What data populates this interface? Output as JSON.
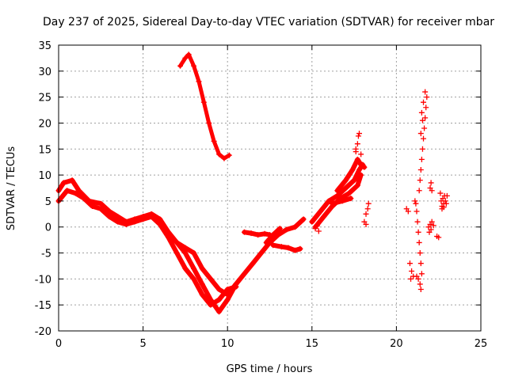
{
  "chart_data": {
    "type": "scatter",
    "title": "Day 237 of 2025, Sidereal Day-to-day VTEC variation (SDTVAR) for receiver mbar",
    "xlabel": "GPS time / hours",
    "ylabel": "SDTVAR / TECUs",
    "xlim": [
      0,
      25
    ],
    "ylim": [
      -20,
      35
    ],
    "xticks": [
      0,
      5,
      10,
      15,
      20,
      25
    ],
    "yticks": [
      -20,
      -15,
      -10,
      -5,
      0,
      5,
      10,
      15,
      20,
      25,
      30,
      35
    ],
    "xtick_labels": [
      "0",
      "5",
      "10",
      "15",
      "20",
      "25"
    ],
    "ytick_labels": [
      "-20",
      "-15",
      "-10",
      "-5",
      "0",
      "5",
      "10",
      "15",
      "20",
      "25",
      "30",
      "35"
    ],
    "grid": true,
    "legend": "none",
    "color": "#ff0000",
    "series": [
      {
        "name": "dense-track-1",
        "points": [
          [
            0,
            7
          ],
          [
            0.3,
            8.5
          ],
          [
            0.8,
            9
          ],
          [
            1.2,
            7
          ],
          [
            1.8,
            5
          ],
          [
            2.5,
            4.5
          ],
          [
            3,
            3
          ],
          [
            3.5,
            2
          ],
          [
            4,
            1
          ],
          [
            4.5,
            1.5
          ],
          [
            5,
            2
          ],
          [
            5.5,
            2.5
          ],
          [
            6,
            1.5
          ],
          [
            6.5,
            -1
          ],
          [
            7,
            -3
          ],
          [
            7.5,
            -5
          ],
          [
            8,
            -8
          ],
          [
            8.5,
            -11
          ],
          [
            9,
            -14
          ],
          [
            9.5,
            -16.3
          ],
          [
            10,
            -14
          ],
          [
            10.5,
            -11
          ],
          [
            11,
            -9
          ],
          [
            11.5,
            -7
          ],
          [
            12,
            -5
          ],
          [
            12.5,
            -3
          ],
          [
            13,
            -1.5
          ],
          [
            13.5,
            -0.5
          ],
          [
            14,
            0
          ],
          [
            14.5,
            1.5
          ]
        ]
      },
      {
        "name": "dense-track-2",
        "points": [
          [
            0,
            5
          ],
          [
            0.5,
            7
          ],
          [
            1,
            6.5
          ],
          [
            1.5,
            5.5
          ],
          [
            2,
            4
          ],
          [
            2.5,
            3.5
          ],
          [
            3,
            2
          ],
          [
            3.5,
            1
          ],
          [
            4,
            0.5
          ],
          [
            4.5,
            1
          ],
          [
            5,
            1.5
          ],
          [
            5.5,
            2
          ],
          [
            6,
            0.5
          ],
          [
            6.5,
            -2
          ],
          [
            7,
            -5
          ],
          [
            7.5,
            -8
          ],
          [
            8,
            -10
          ],
          [
            8.5,
            -13
          ],
          [
            9,
            -15
          ],
          [
            9.5,
            -14
          ],
          [
            10,
            -12
          ],
          [
            10.5,
            -11.5
          ]
        ]
      },
      {
        "name": "dense-track-3",
        "points": [
          [
            7,
            -3
          ],
          [
            7.5,
            -4
          ],
          [
            8,
            -5
          ],
          [
            8.5,
            -8
          ],
          [
            9,
            -10
          ],
          [
            9.5,
            -12
          ],
          [
            10,
            -13
          ],
          [
            10.5,
            -11
          ]
        ]
      },
      {
        "name": "upper-arc",
        "points": [
          [
            7.2,
            31
          ],
          [
            7.5,
            32.5
          ],
          [
            7.7,
            33.2
          ],
          [
            8,
            31
          ],
          [
            8.3,
            28
          ],
          [
            8.6,
            24
          ],
          [
            8.9,
            20
          ],
          [
            9.2,
            16.5
          ],
          [
            9.5,
            14
          ],
          [
            9.8,
            13.2
          ],
          [
            10.1,
            13.8
          ]
        ]
      },
      {
        "name": "mid-segment-a",
        "points": [
          [
            11,
            -1
          ],
          [
            11.4,
            -1.2
          ],
          [
            11.8,
            -1.5
          ],
          [
            12.2,
            -1.3
          ],
          [
            12.5,
            -1.5
          ]
        ]
      },
      {
        "name": "mid-segment-b",
        "points": [
          [
            12.7,
            -3.5
          ],
          [
            13.2,
            -3.8
          ],
          [
            13.6,
            -4
          ],
          [
            14,
            -4.5
          ],
          [
            14.3,
            -4.2
          ]
        ]
      },
      {
        "name": "mid-segment-c",
        "points": [
          [
            12.3,
            -3
          ],
          [
            12.7,
            -1.5
          ],
          [
            13.1,
            -0.3
          ]
        ]
      },
      {
        "name": "rising-track-1",
        "points": [
          [
            15,
            1
          ],
          [
            15.5,
            3
          ],
          [
            16,
            5
          ],
          [
            16.5,
            6
          ],
          [
            17,
            7.5
          ],
          [
            17.5,
            9
          ],
          [
            17.8,
            11
          ],
          [
            18,
            12
          ]
        ]
      },
      {
        "name": "rising-track-2",
        "points": [
          [
            15.2,
            0
          ],
          [
            15.7,
            2
          ],
          [
            16.2,
            4
          ],
          [
            16.7,
            5.5
          ],
          [
            17.2,
            6.5
          ],
          [
            17.7,
            8
          ],
          [
            17.9,
            10
          ]
        ]
      },
      {
        "name": "rising-track-3",
        "points": [
          [
            16.5,
            7
          ],
          [
            17,
            9
          ],
          [
            17.4,
            11
          ],
          [
            17.7,
            13
          ],
          [
            17.9,
            12
          ],
          [
            18.1,
            11.5
          ]
        ]
      },
      {
        "name": "rising-track-4",
        "points": [
          [
            16.2,
            4.5
          ],
          [
            16.8,
            5
          ],
          [
            17.3,
            5.5
          ]
        ]
      },
      {
        "name": "scatter-1",
        "points": [
          [
            17.6,
            15
          ],
          [
            17.7,
            16
          ],
          [
            17.75,
            17.5
          ],
          [
            17.8,
            18
          ],
          [
            17.6,
            14.5
          ],
          [
            17.9,
            14
          ]
        ]
      },
      {
        "name": "scatter-2",
        "points": [
          [
            15.2,
            -0.3
          ],
          [
            15.3,
            0.2
          ],
          [
            15.4,
            -0.8
          ]
        ]
      },
      {
        "name": "scatter-3",
        "points": [
          [
            18.1,
            1
          ],
          [
            18.2,
            2.5
          ],
          [
            18.3,
            3.5
          ],
          [
            18.35,
            4.5
          ],
          [
            18.2,
            0.5
          ]
        ]
      },
      {
        "name": "scatter-4",
        "points": [
          [
            20.6,
            3.5
          ],
          [
            20.7,
            3
          ],
          [
            20.8,
            -7
          ],
          [
            20.9,
            -8.5
          ],
          [
            20.85,
            -10
          ],
          [
            21.0,
            -9.5
          ],
          [
            21.1,
            5
          ],
          [
            21.15,
            4.5
          ],
          [
            21.2,
            3
          ],
          [
            21.25,
            1
          ],
          [
            21.3,
            -1
          ],
          [
            21.35,
            -3
          ],
          [
            21.4,
            -5
          ],
          [
            21.45,
            -7
          ],
          [
            21.5,
            -9
          ],
          [
            21.4,
            -11
          ],
          [
            21.45,
            -12
          ],
          [
            21.3,
            -10
          ],
          [
            21.2,
            -9.5
          ],
          [
            21.35,
            7
          ],
          [
            21.4,
            9
          ],
          [
            21.45,
            11
          ],
          [
            21.5,
            13
          ],
          [
            21.55,
            15
          ],
          [
            21.6,
            17
          ],
          [
            21.65,
            19
          ],
          [
            21.7,
            21
          ],
          [
            21.75,
            23
          ],
          [
            21.8,
            25
          ],
          [
            21.7,
            26
          ],
          [
            21.6,
            24
          ],
          [
            21.5,
            22
          ],
          [
            21.55,
            20.5
          ],
          [
            21.45,
            18
          ]
        ]
      },
      {
        "name": "scatter-5",
        "points": [
          [
            21.9,
            0
          ],
          [
            22.0,
            0.5
          ],
          [
            22.05,
            -0.5
          ],
          [
            22.1,
            1
          ],
          [
            22.2,
            0.3
          ],
          [
            21.95,
            -1
          ],
          [
            22.0,
            7.5
          ],
          [
            22.05,
            8.5
          ],
          [
            22.1,
            7
          ],
          [
            22.4,
            -1.8
          ],
          [
            22.5,
            -2
          ]
        ]
      },
      {
        "name": "scatter-6",
        "points": [
          [
            22.6,
            6.5
          ],
          [
            22.65,
            5
          ],
          [
            22.7,
            4
          ],
          [
            22.75,
            5.5
          ],
          [
            22.8,
            4.5
          ],
          [
            22.85,
            6
          ],
          [
            22.9,
            5
          ],
          [
            22.95,
            4.5
          ],
          [
            23.0,
            6
          ],
          [
            22.7,
            3.5
          ],
          [
            22.8,
            3.8
          ]
        ]
      }
    ]
  }
}
